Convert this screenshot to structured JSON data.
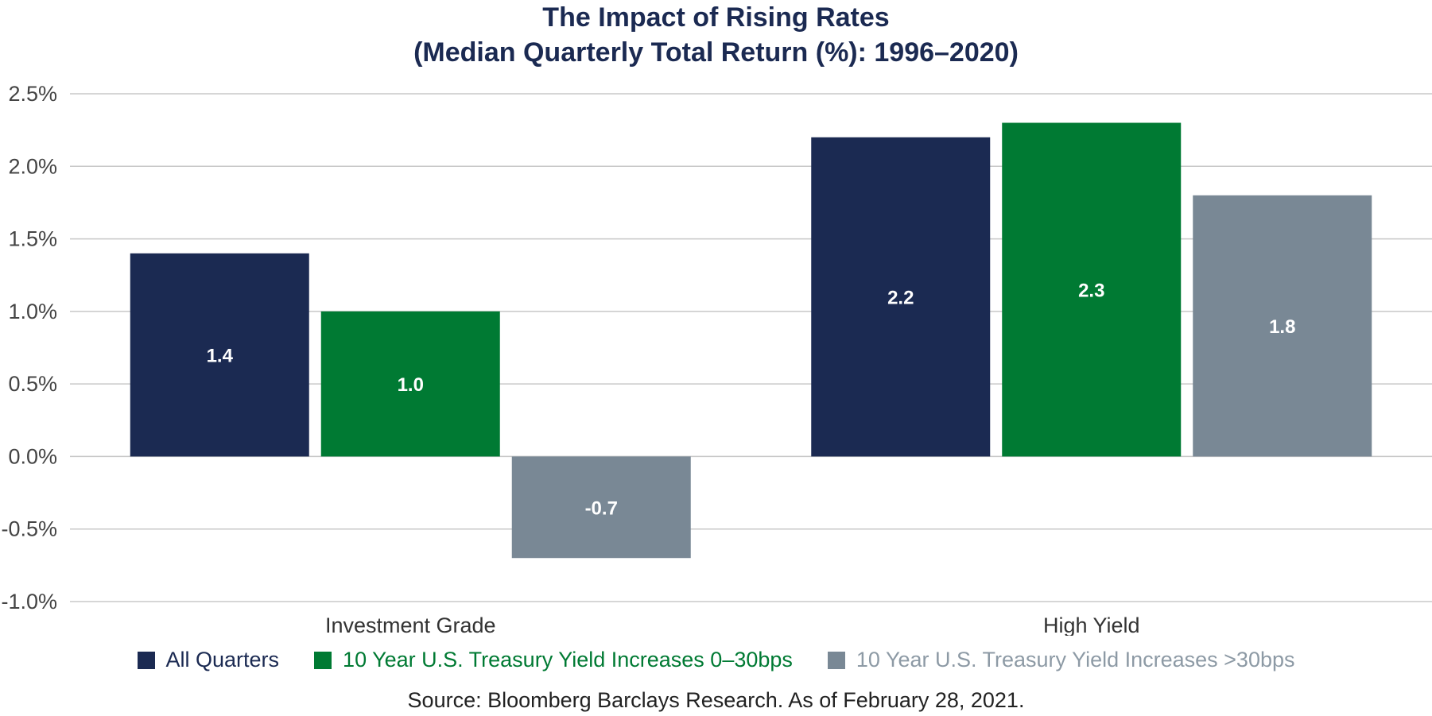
{
  "chart_data": {
    "type": "bar",
    "title": "The Impact of Rising Rates",
    "subtitle": "(Median Quarterly Total Return (%): 1996–2020)",
    "categories": [
      "Investment Grade",
      "High Yield"
    ],
    "series": [
      {
        "name": "All Quarters",
        "values": [
          1.4,
          2.2
        ],
        "color": "#1b2a52"
      },
      {
        "name": "10 Year U.S. Treasury Yield Increases 0–30bps",
        "values": [
          1.0,
          2.3
        ],
        "color": "#007a33"
      },
      {
        "name": "10 Year U.S. Treasury Yield Increases >30bps",
        "values": [
          -0.7,
          1.8
        ],
        "color": "#798895"
      }
    ],
    "data_labels": [
      [
        "1.4",
        "2.2"
      ],
      [
        "1.0",
        "2.3"
      ],
      [
        "-0.7",
        "1.8"
      ]
    ],
    "ylim": [
      -1.0,
      2.5
    ],
    "yticks": [
      2.5,
      2.0,
      1.5,
      1.0,
      0.5,
      0.0,
      -0.5,
      -1.0
    ],
    "ytick_labels": [
      "2.5%",
      "2.0%",
      "1.5%",
      "1.0%",
      "0.5%",
      "0.0%",
      "-0.5%",
      "-1.0%"
    ],
    "grid": true,
    "legend_position": "bottom",
    "source": "Source: Bloomberg Barclays Research. As of February 28, 2021."
  },
  "colors": {
    "title": "#1b2a52",
    "grid": "#c8c8c8",
    "tick_text": "#444444",
    "data_label": "#ffffff",
    "legend_text": [
      "#1b2a52",
      "#007a33",
      "#8d9aa5"
    ]
  }
}
